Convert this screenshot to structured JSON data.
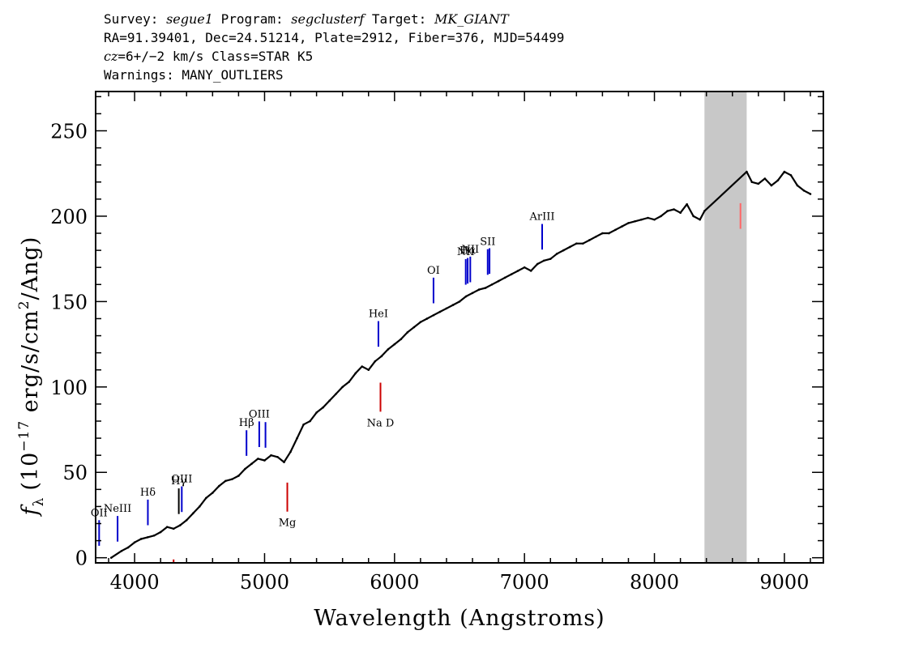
{
  "header": {
    "line1": {
      "survey_label": "Survey: ",
      "survey": "segue1",
      "program_label": " Program: ",
      "program": "segclusterf",
      "target_label": " Target: ",
      "target": "MK_GIANT"
    },
    "line2": "RA=91.39401, Dec=24.51214, Plate=2912, Fiber=376, MJD=54499",
    "line3": {
      "cz_label": "cz",
      "cz_value": "=6+/−2",
      "rest": " km/s Class=STAR K5"
    },
    "line4": "Warnings: MANY_OUTLIERS"
  },
  "chart_data": {
    "type": "line",
    "xlabel": "Wavelength (Angstroms)",
    "ylabel": "fλ (10^-17 erg/s/cm^2/Ang)",
    "ylabel_parts": {
      "f": "f",
      "sub": "λ",
      "pre": "(10",
      "exp1": "−17",
      "mid": " erg/s/cm",
      "exp2": "2",
      "post": "/Ang)"
    },
    "xlim": [
      3700,
      9300
    ],
    "ylim": [
      -3,
      273
    ],
    "xticks": [
      4000,
      5000,
      6000,
      7000,
      8000,
      9000
    ],
    "yticks": [
      0,
      50,
      100,
      150,
      200,
      250
    ],
    "masked_region": [
      8385,
      8710
    ],
    "series": [
      {
        "color": "#000000",
        "x": [
          3820,
          3900,
          3950,
          4000,
          4050,
          4100,
          4150,
          4200,
          4250,
          4300,
          4350,
          4400,
          4450,
          4500,
          4550,
          4600,
          4650,
          4700,
          4750,
          4800,
          4850,
          4900,
          4950,
          5000,
          5050,
          5100,
          5150,
          5200,
          5250,
          5300,
          5350,
          5400,
          5450,
          5500,
          5550,
          5600,
          5650,
          5700,
          5750,
          5800,
          5850,
          5900,
          5950,
          6000,
          6050,
          6100,
          6150,
          6200,
          6250,
          6300,
          6350,
          6400,
          6450,
          6500,
          6550,
          6600,
          6650,
          6700,
          6750,
          6800,
          6850,
          6900,
          6950,
          7000,
          7050,
          7100,
          7150,
          7200,
          7250,
          7300,
          7350,
          7400,
          7450,
          7500,
          7550,
          7600,
          7650,
          7700,
          7750,
          7800,
          7850,
          7900,
          7950,
          8000,
          8050,
          8100,
          8150,
          8200,
          8250,
          8300,
          8350,
          8385,
          8710,
          8750,
          8800,
          8850,
          8900,
          8950,
          9000,
          9050,
          9100,
          9150,
          9200
        ],
        "y": [
          0,
          4,
          6,
          9,
          11,
          12,
          13,
          15,
          18,
          17,
          19,
          22,
          26,
          30,
          35,
          38,
          42,
          45,
          46,
          48,
          52,
          55,
          58,
          57,
          60,
          59,
          56,
          62,
          70,
          78,
          80,
          85,
          88,
          92,
          96,
          100,
          103,
          108,
          112,
          110,
          115,
          118,
          122,
          125,
          128,
          132,
          135,
          138,
          140,
          142,
          144,
          146,
          148,
          150,
          153,
          155,
          157,
          158,
          160,
          162,
          164,
          166,
          168,
          170,
          168,
          172,
          174,
          175,
          178,
          180,
          182,
          184,
          184,
          186,
          188,
          190,
          190,
          192,
          194,
          196,
          197,
          198,
          199,
          198,
          200,
          203,
          204,
          202,
          207,
          200,
          198,
          203,
          226,
          220,
          219,
          222,
          218,
          221,
          226,
          224,
          218,
          215,
          213
        ]
      }
    ],
    "absorption_features": [
      {
        "name": "Mg",
        "x": 5175
      },
      {
        "name": "Na  D",
        "x": 5892
      }
    ],
    "spectral_lines": [
      {
        "label": "OII",
        "x": 3727,
        "color": "#0000cc"
      },
      {
        "label": "NeIII",
        "x": 3869,
        "color": "#0000cc"
      },
      {
        "label": "Hδ",
        "x": 4102,
        "color": "#0000cc"
      },
      {
        "label": "Hγ",
        "x": 4340,
        "color": "#000000"
      },
      {
        "label": "OIII",
        "x": 4363,
        "color": "#0000cc"
      },
      {
        "label": "Hβ",
        "x": 4861,
        "color": "#0000cc"
      },
      {
        "label": "OIII",
        "x": 4959,
        "color": "#0000cc"
      },
      {
        "label": "",
        "x": 5007,
        "color": "#0000cc"
      },
      {
        "label": "HeI",
        "x": 5876,
        "color": "#0000cc"
      },
      {
        "label": "OI",
        "x": 6300,
        "color": "#0000cc"
      },
      {
        "label": "NII",
        "x": 6548,
        "color": "#0000cc"
      },
      {
        "label": "Hα",
        "x": 6563,
        "color": "#0000cc"
      },
      {
        "label": "NII",
        "x": 6583,
        "color": "#0000cc"
      },
      {
        "label": "SII",
        "x": 6717,
        "color": "#0000cc"
      },
      {
        "label": "",
        "x": 6731,
        "color": "#0000cc"
      },
      {
        "label": "ArIII",
        "x": 7136,
        "color": "#0000cc"
      },
      {
        "label": "",
        "x": 4300,
        "color": "#cc0000"
      },
      {
        "label": "",
        "x": 8662,
        "color": "#ff6666"
      }
    ]
  }
}
